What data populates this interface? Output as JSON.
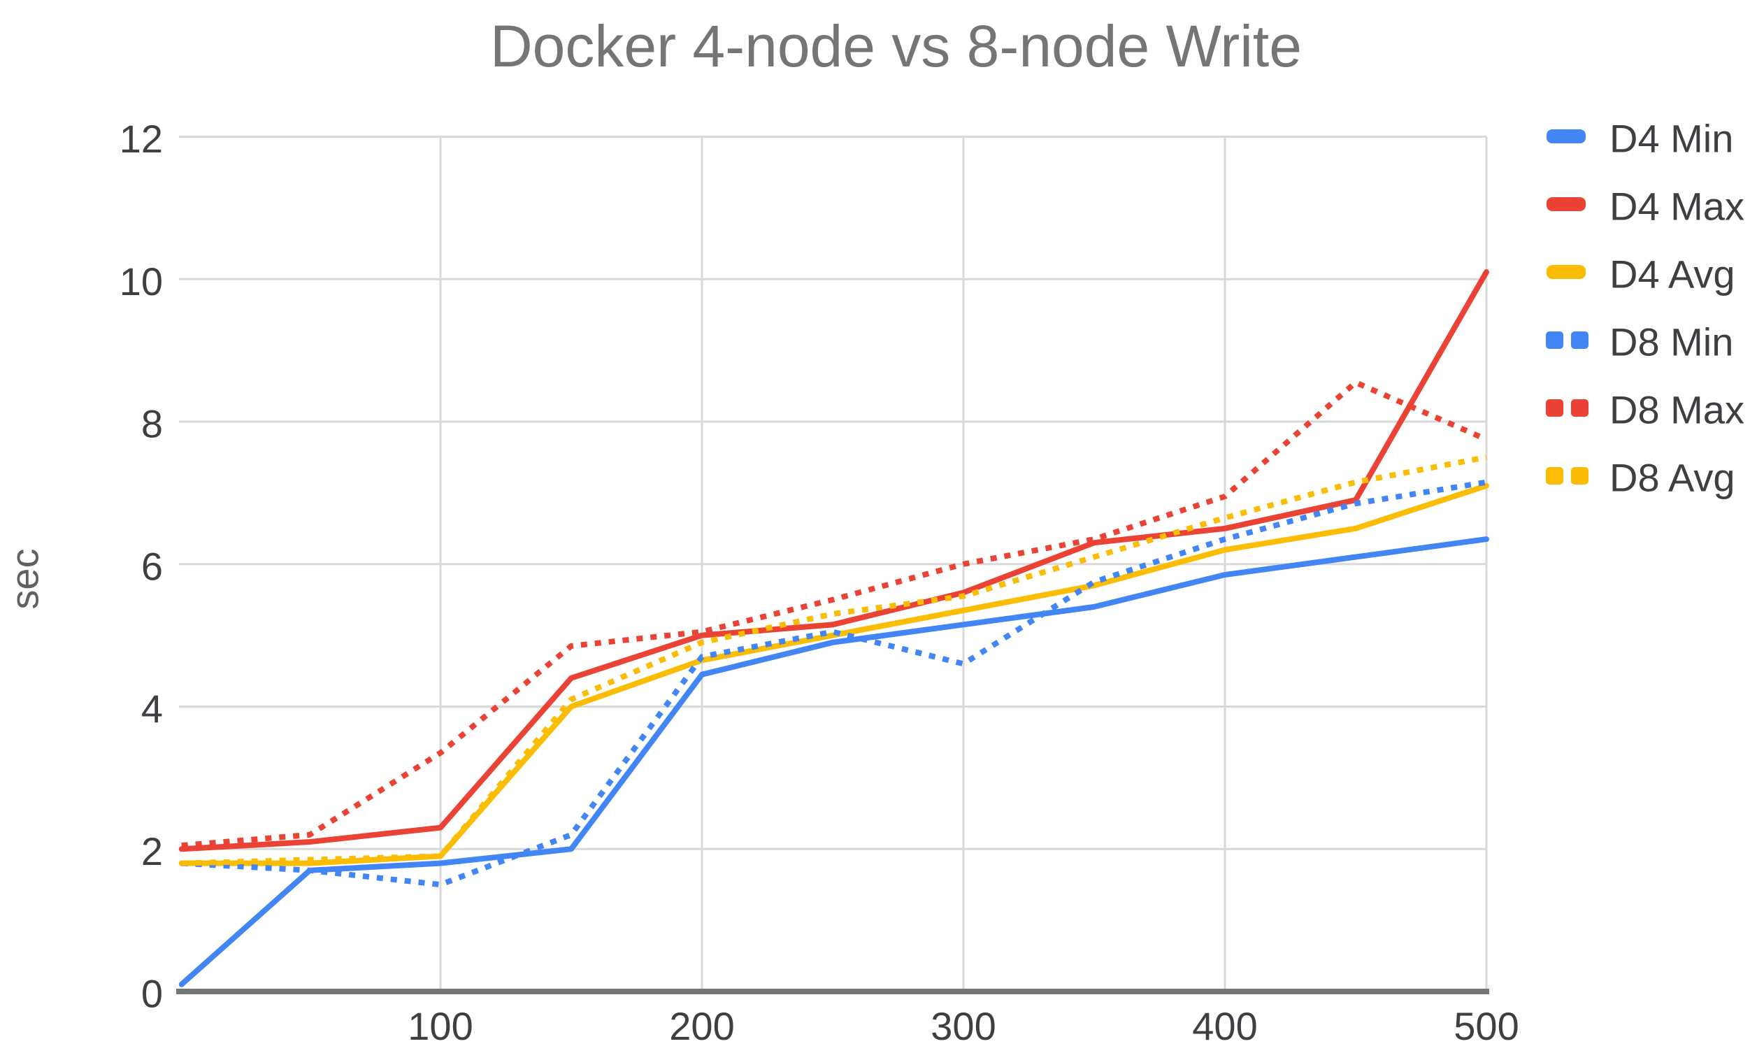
{
  "colors": {
    "title_text": "#757575",
    "tick_text": "#3C4043",
    "axis_title_text": "#616161",
    "gridline": "#D9D9D9",
    "axis_line": "#757575",
    "series_blue": "#4285F4",
    "series_red": "#EA4335",
    "series_yellow": "#FBBC04",
    "background": "#FFFFFF"
  },
  "chart_data": {
    "type": "line",
    "title": "Docker 4-node vs 8-node Write",
    "ylabel": "sec",
    "xlabel": "",
    "xlim": [
      0,
      500
    ],
    "ylim": [
      0,
      12
    ],
    "x_ticks": [
      100,
      200,
      300,
      400,
      500
    ],
    "y_ticks": [
      0,
      2,
      4,
      6,
      8,
      10,
      12
    ],
    "grid": true,
    "legend_position": "right",
    "x": [
      1,
      50,
      100,
      150,
      200,
      250,
      300,
      350,
      400,
      450,
      500
    ],
    "series": [
      {
        "name": "D4 Min",
        "color": "#4285F4",
        "style": "solid",
        "values": [
          0.1,
          1.7,
          1.8,
          2.0,
          4.45,
          4.9,
          5.15,
          5.4,
          5.85,
          6.1,
          6.35
        ]
      },
      {
        "name": "D4 Max",
        "color": "#EA4335",
        "style": "solid",
        "values": [
          2.0,
          2.1,
          2.3,
          4.4,
          5.0,
          5.15,
          5.6,
          6.3,
          6.5,
          6.9,
          10.1
        ]
      },
      {
        "name": "D4 Avg",
        "color": "#FBBC04",
        "style": "solid",
        "values": [
          1.8,
          1.8,
          1.9,
          4.0,
          4.65,
          5.0,
          5.35,
          5.7,
          6.2,
          6.5,
          7.1
        ]
      },
      {
        "name": "D8 Min",
        "color": "#4285F4",
        "style": "dotted",
        "values": [
          1.8,
          1.7,
          1.5,
          2.2,
          4.7,
          5.05,
          4.6,
          5.75,
          6.35,
          6.85,
          7.15
        ]
      },
      {
        "name": "D8 Max",
        "color": "#EA4335",
        "style": "dotted",
        "values": [
          2.05,
          2.2,
          3.35,
          4.85,
          5.05,
          5.5,
          6.0,
          6.35,
          6.95,
          8.55,
          7.75
        ]
      },
      {
        "name": "D8 Avg",
        "color": "#FBBC04",
        "style": "dotted",
        "values": [
          1.8,
          1.85,
          1.9,
          4.1,
          4.9,
          5.3,
          5.55,
          6.1,
          6.65,
          7.15,
          7.5
        ]
      }
    ]
  }
}
